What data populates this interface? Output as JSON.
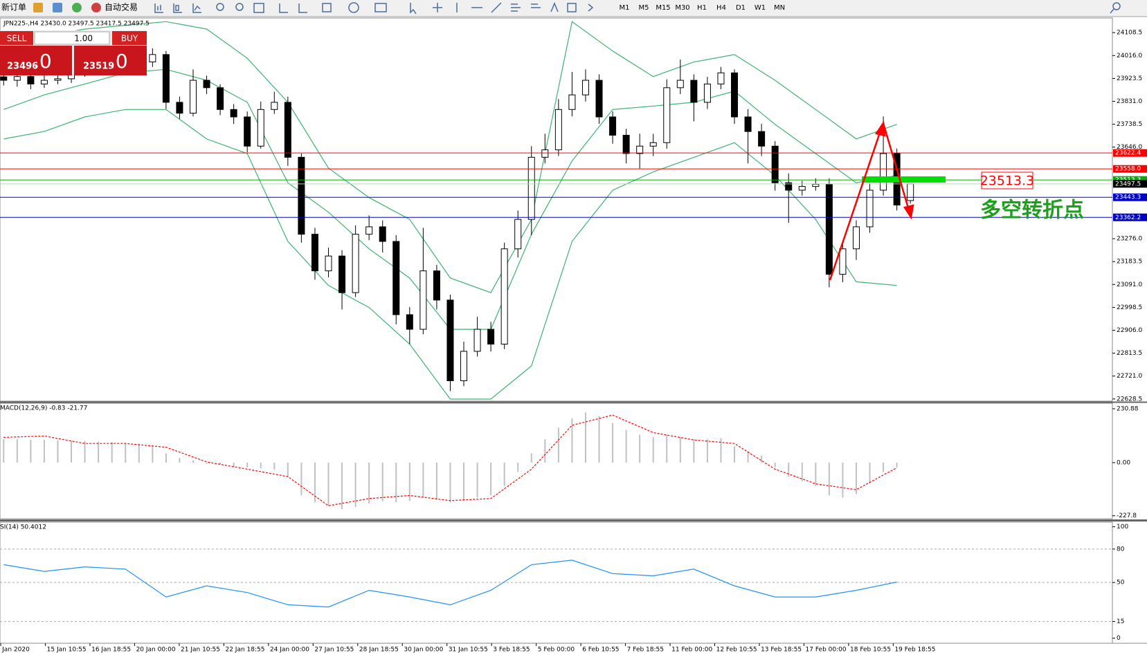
{
  "toolbar": {
    "new_order": "新订单",
    "auto_trading": "自动交易",
    "timeframes": [
      "M1",
      "M5",
      "M15",
      "M30",
      "H1",
      "H4",
      "D1",
      "W1",
      "MN"
    ]
  },
  "trade_panel": {
    "sell": "SELL",
    "buy": "BUY",
    "volume": "1.00",
    "sell_price": "23496",
    "sell_fraction": ".0",
    "buy_price": "23519",
    "buy_fraction": ".0"
  },
  "chart_data": [
    {
      "type": "candlestick",
      "title": "JPN225-,H4  23430.0 23497.5 23417.5 23497.5",
      "ylim": [
        22619.6,
        24167.7
      ],
      "yticks": [
        24108.5,
        {
          "value": 24016,
          "label": "24016.0"
        },
        23923.5,
        {
          "value": 23831,
          "label": "23831.0"
        },
        23738.5,
        {
          "value": 23646,
          "label": "23646.0"
        },
        {
          "value": 23276,
          "label": "23276.0"
        },
        23183.5,
        {
          "value": 23091,
          "label": "23091.0"
        },
        22998.5,
        {
          "value": 22906,
          "label": "22906.0"
        },
        22813.5,
        {
          "value": 22721,
          "label": "22721.0"
        },
        22628.5
      ],
      "open": [
        23930,
        23916,
        23931,
        23901,
        23916,
        23922,
        23946,
        23960,
        23969,
        23975,
        23981,
        23990,
        24020,
        23827,
        23783,
        23916,
        23886,
        23798,
        23768,
        23650,
        23798,
        23827,
        23605,
        23294,
        23146,
        23206,
        23058,
        23294,
        23324,
        23265,
        22969,
        22910,
        23146,
        23028,
        22702,
        22821,
        22910,
        22850,
        23235,
        23354,
        23605,
        23635,
        23798,
        23857,
        23916,
        23768,
        23694,
        23620,
        23650,
        23664,
        23886,
        23916,
        23827,
        23901,
        23946,
        23768,
        23709,
        23650,
        23502,
        23472,
        23487,
        23496,
        23132,
        23235,
        23324,
        23472,
        23620,
        23430
      ],
      "high": [
        23955,
        23950,
        23948,
        23940,
        23945,
        23965,
        23980,
        23990,
        23995,
        24000,
        24010,
        24045,
        24035,
        23850,
        23960,
        23935,
        23900,
        23820,
        23790,
        23830,
        23870,
        23850,
        23620,
        23320,
        23240,
        23230,
        23330,
        23370,
        23350,
        23290,
        23000,
        23320,
        23170,
        23050,
        22860,
        22960,
        22940,
        23260,
        23390,
        23650,
        23700,
        23840,
        23950,
        23960,
        23940,
        23790,
        23720,
        23700,
        23700,
        23920,
        24000,
        23940,
        23930,
        23970,
        23960,
        23800,
        23740,
        23670,
        23540,
        23510,
        23520,
        23520,
        23260,
        23350,
        23500,
        23770,
        23640,
        23497.5
      ],
      "low": [
        23895,
        23890,
        23880,
        23885,
        23900,
        23905,
        23930,
        23945,
        23950,
        23955,
        23960,
        23970,
        23800,
        23760,
        23770,
        23860,
        23775,
        23740,
        23625,
        23640,
        23780,
        23570,
        23260,
        23110,
        23120,
        22990,
        23040,
        23270,
        23220,
        22930,
        22850,
        22890,
        22990,
        22660,
        22680,
        22800,
        22820,
        22830,
        23200,
        23290,
        23580,
        23610,
        23770,
        23830,
        23740,
        23660,
        23580,
        23560,
        23610,
        23640,
        23860,
        23750,
        23800,
        23880,
        23740,
        23580,
        23610,
        23470,
        23340,
        23450,
        23470,
        23080,
        23100,
        23190,
        23300,
        23450,
        23390,
        23417.5
      ],
      "close": [
        23916,
        23931,
        23901,
        23916,
        23922,
        23946,
        23960,
        23969,
        23975,
        23981,
        23990,
        24020,
        23827,
        23783,
        23916,
        23886,
        23798,
        23768,
        23650,
        23798,
        23827,
        23605,
        23294,
        23146,
        23206,
        23058,
        23294,
        23324,
        23265,
        22969,
        22910,
        23146,
        23028,
        22702,
        22821,
        22910,
        22850,
        23235,
        23354,
        23605,
        23635,
        23798,
        23857,
        23916,
        23768,
        23694,
        23620,
        23650,
        23664,
        23886,
        23916,
        23827,
        23901,
        23946,
        23768,
        23709,
        23650,
        23502,
        23472,
        23487,
        23496,
        23132,
        23235,
        23324,
        23472,
        23620,
        23412,
        23497.5
      ],
      "bands": {
        "color": "#3cb371",
        "x": [
          0,
          3,
          6,
          9,
          12,
          15,
          18,
          21,
          24,
          27,
          30,
          33,
          36,
          39,
          42,
          45,
          48,
          51,
          54,
          57,
          60,
          63,
          66
        ],
        "upper": [
          24064,
          24094,
          24123,
          24138,
          24153,
          24123,
          24005,
          23827,
          23561,
          23442,
          23354,
          23117,
          23058,
          23354,
          24153,
          24034,
          23931,
          23990,
          24020,
          23916,
          23798,
          23679,
          23738
        ],
        "middle": [
          23798,
          23857,
          23901,
          23946,
          23960,
          23916,
          23827,
          23502,
          23383,
          23235,
          23117,
          22910,
          22910,
          23294,
          23590,
          23798,
          23812,
          23827,
          23872,
          23738,
          23620,
          23502,
          23531
        ],
        "lower": [
          23679,
          23709,
          23768,
          23798,
          23798,
          23679,
          23620,
          23265,
          23087,
          22998,
          22850,
          22628,
          22628,
          22762,
          23265,
          23472,
          23546,
          23605,
          23664,
          23531,
          23354,
          23102,
          23087
        ]
      },
      "levels": [
        {
          "value": 23622.4,
          "color": "#ff0000"
        },
        {
          "value": 23558,
          "label": "23558.0",
          "color": "#ff0000"
        },
        {
          "value": 23513.3,
          "color": "#00b000"
        },
        {
          "value": 23497.5,
          "color": "#000000"
        },
        {
          "value": 23443.3,
          "color": "#0000cc"
        },
        {
          "value": 23362.2,
          "color": "#0000cc"
        }
      ],
      "annotations": {
        "price_box": "23513.3",
        "note": "多空转折点"
      }
    },
    {
      "type": "macd",
      "title": "MACD(12,26,9) -0.83 -21.77",
      "ylim": [
        -240.6,
        254.6
      ],
      "yticks": [
        230.88,
        {
          "value": 0,
          "label": "0.00"
        },
        -227.8
      ],
      "histogram": {
        "color": "#c0c0c0",
        "values": [
          100,
          100,
          98,
          97,
          95,
          95,
          93,
          90,
          88,
          85,
          80,
          75,
          40,
          20,
          10,
          -5,
          -10,
          -20,
          -20,
          -25,
          -30,
          -60,
          -140,
          -170,
          -185,
          -200,
          -190,
          -175,
          -165,
          -170,
          -165,
          -150,
          -160,
          -170,
          -165,
          -150,
          -140,
          -100,
          -40,
          40,
          100,
          150,
          190,
          215,
          200,
          170,
          140,
          120,
          110,
          120,
          110,
          100,
          100,
          105,
          70,
          50,
          30,
          -20,
          -60,
          -80,
          -100,
          -140,
          -150,
          -135,
          -90,
          -40,
          -20,
          -0.83
        ]
      },
      "signal": {
        "color": "#ff0000",
        "x": [
          0,
          3,
          6,
          9,
          12,
          15,
          18,
          21,
          24,
          27,
          30,
          33,
          36,
          39,
          42,
          45,
          48,
          51,
          54,
          57,
          60,
          63,
          66
        ],
        "values": [
          108,
          114,
          82,
          82,
          66,
          3,
          -28,
          -60,
          -185,
          -154,
          -141,
          -163,
          -154,
          -28,
          160,
          204,
          129,
          97,
          82,
          -28,
          -91,
          -116,
          -21.77
        ]
      }
    },
    {
      "type": "line",
      "title": "SI(14) 50.4012",
      "ylim": [
        -4.5,
        104.1
      ],
      "yticks": [
        100,
        80,
        50,
        15,
        0
      ],
      "series": [
        {
          "color": "#1e90ff",
          "x": [
            0,
            3,
            6,
            9,
            12,
            15,
            18,
            21,
            24,
            27,
            30,
            33,
            36,
            39,
            42,
            45,
            48,
            51,
            54,
            57,
            60,
            63,
            66
          ],
          "values": [
            66,
            60,
            64,
            62,
            37,
            47,
            41,
            30,
            28,
            43,
            37,
            30,
            43,
            66,
            70,
            58,
            56,
            62,
            47,
            37,
            37,
            43,
            50.4012
          ]
        }
      ],
      "x_labels": [
        "Jan 2020",
        "15 Jan 10:55",
        "16 Jan 18:55",
        "20 Jan 00:00",
        "21 Jan 10:55",
        "22 Jan 18:55",
        "24 Jan 00:00",
        "27 Jan 10:55",
        "28 Jan 18:55",
        "30 Jan 00:00",
        "31 Jan 10:55",
        "3 Feb 18:55",
        "5 Feb 00:00",
        "6 Feb 10:55",
        "7 Feb 18:55",
        "11 Feb 00:00",
        "12 Feb 10:55",
        "13 Feb 18:55",
        "17 Feb 00:00",
        "18 Feb 10:55",
        "19 Feb 18:55"
      ]
    }
  ]
}
